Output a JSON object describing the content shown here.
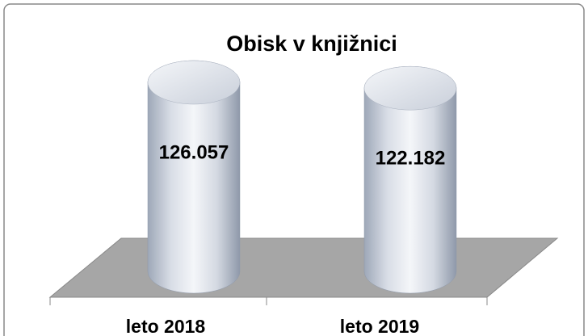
{
  "chart_data": {
    "type": "bar",
    "title": "Obisk v knjižnici",
    "categories": [
      "leto 2018",
      "leto 2019"
    ],
    "values": [
      126057,
      122182
    ],
    "value_labels": [
      "126.057",
      "122.182"
    ]
  }
}
